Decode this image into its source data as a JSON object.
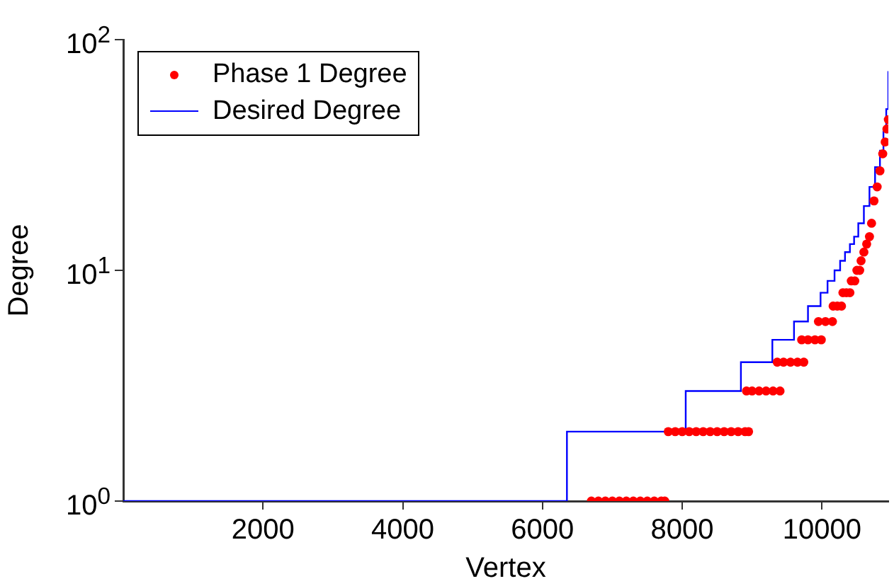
{
  "chart_data": {
    "type": "scatter",
    "xlabel": "Vertex",
    "ylabel": "Degree",
    "log": "y",
    "xlim": [
      0,
      10950
    ],
    "xticks": [
      2000,
      4000,
      6000,
      8000,
      10000
    ],
    "ylim": [
      1,
      100
    ],
    "yticks": [
      {
        "value": 1,
        "label": "10$^{0}$"
      },
      {
        "value": 10,
        "label": "10$^{1}$"
      },
      {
        "value": 100,
        "label": "10$^{2}$"
      }
    ],
    "legend": "top left",
    "grid": false,
    "series": [
      {
        "name": "Phase 1 Degree",
        "type": "scatter",
        "marker": "circle",
        "color": "#ff0000",
        "x": [
          6700,
          6800,
          6900,
          7000,
          7100,
          7200,
          7300,
          7400,
          7500,
          7600,
          7700,
          7750,
          7800,
          7900,
          8000,
          8100,
          8200,
          8300,
          8400,
          8500,
          8600,
          8700,
          8800,
          8900,
          8950,
          8920,
          9000,
          9100,
          9200,
          9300,
          9400,
          9360,
          9450,
          9550,
          9650,
          9740,
          9710,
          9800,
          9900,
          9990,
          9950,
          10050,
          10150,
          10160,
          10220,
          10280,
          10300,
          10350,
          10400,
          10420,
          10470,
          10500,
          10540,
          10560,
          10600,
          10640,
          10680,
          10710,
          10745,
          10790,
          10830,
          10870,
          10905,
          10930,
          10950
        ],
        "values": [
          1,
          1,
          1,
          1,
          1,
          1,
          1,
          1,
          1,
          1,
          1,
          1,
          2,
          2,
          2,
          2,
          2,
          2,
          2,
          2,
          2,
          2,
          2,
          2,
          2,
          3,
          3,
          3,
          3,
          3,
          3,
          4,
          4,
          4,
          4,
          4,
          5,
          5,
          5,
          5,
          6,
          6,
          6,
          7,
          7,
          7,
          8,
          8,
          8,
          9,
          9,
          10,
          10,
          11,
          12,
          13,
          14,
          16,
          20,
          23,
          27,
          32,
          36,
          41,
          45
        ]
      },
      {
        "name": "Desired Degree",
        "type": "step",
        "marker": "none",
        "color": "#0000ff",
        "x": [
          0,
          6350,
          8050,
          8840,
          9290,
          9600,
          9800,
          9980,
          10080,
          10180,
          10260,
          10330,
          10400,
          10460,
          10520,
          10600,
          10680,
          10760,
          10830,
          10880,
          10920,
          10950
        ],
        "values": [
          1,
          2,
          3,
          4,
          5,
          6,
          7,
          8,
          9,
          10,
          11,
          12,
          13,
          14,
          16,
          19,
          23,
          28,
          33,
          40,
          50,
          73
        ]
      }
    ]
  }
}
